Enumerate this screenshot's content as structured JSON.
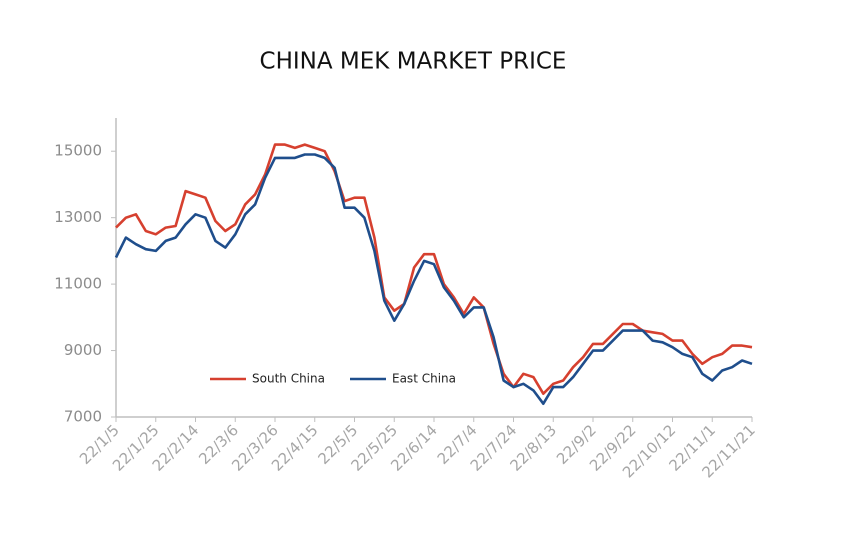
{
  "chart_data": {
    "type": "line",
    "title": "CHINA MEK MARKET PRICE",
    "x": [
      "22/1/5",
      "22/1/10",
      "22/1/15",
      "22/1/20",
      "22/1/25",
      "22/1/30",
      "22/2/4",
      "22/2/9",
      "22/2/14",
      "22/2/19",
      "22/2/24",
      "22/3/1",
      "22/3/6",
      "22/3/11",
      "22/3/16",
      "22/3/21",
      "22/3/26",
      "22/3/31",
      "22/4/5",
      "22/4/10",
      "22/4/15",
      "22/4/20",
      "22/4/25",
      "22/4/30",
      "22/5/5",
      "22/5/10",
      "22/5/15",
      "22/5/20",
      "22/5/25",
      "22/5/30",
      "22/6/4",
      "22/6/9",
      "22/6/14",
      "22/6/19",
      "22/6/24",
      "22/6/29",
      "22/7/4",
      "22/7/9",
      "22/7/14",
      "22/7/19",
      "22/7/24",
      "22/7/29",
      "22/8/3",
      "22/8/8",
      "22/8/13",
      "22/8/18",
      "22/8/23",
      "22/8/28",
      "22/9/2",
      "22/9/7",
      "22/9/12",
      "22/9/17",
      "22/9/22",
      "22/9/27",
      "22/10/2",
      "22/10/7",
      "22/10/12",
      "22/10/17",
      "22/10/22",
      "22/10/27",
      "22/11/1",
      "22/11/6",
      "22/11/11",
      "22/11/16",
      "22/11/21"
    ],
    "xticks": [
      "22/1/5",
      "22/1/25",
      "22/2/14",
      "22/3/6",
      "22/3/26",
      "22/4/15",
      "22/5/5",
      "22/5/25",
      "22/6/14",
      "22/7/4",
      "22/7/24",
      "22/8/13",
      "22/9/2",
      "22/9/22",
      "22/10/12",
      "22/11/1",
      "22/11/21"
    ],
    "series": [
      {
        "name": "South China",
        "color": "#d6402f",
        "values": [
          12700,
          13000,
          13100,
          12600,
          12500,
          12700,
          12750,
          13800,
          13700,
          13600,
          12900,
          12600,
          12800,
          13400,
          13700,
          14300,
          15200,
          15200,
          15100,
          15200,
          15100,
          15000,
          14400,
          13500,
          13600,
          13600,
          12400,
          10600,
          10200,
          10400,
          11500,
          11900,
          11900,
          11000,
          10600,
          10100,
          10600,
          10300,
          9200,
          8300,
          7900,
          8300,
          8200,
          7700,
          8000,
          8100,
          8500,
          8800,
          9200,
          9200,
          9500,
          9800,
          9800,
          9600,
          9550,
          9500,
          9300,
          9300,
          8900,
          8600,
          8800,
          8900,
          9150,
          9150,
          9100
        ]
      },
      {
        "name": "East China",
        "color": "#1f4e8c",
        "values": [
          11800,
          12400,
          12200,
          12050,
          12000,
          12300,
          12400,
          12800,
          13100,
          13000,
          12300,
          12100,
          12500,
          13100,
          13400,
          14200,
          14800,
          14800,
          14800,
          14900,
          14900,
          14800,
          14500,
          13300,
          13300,
          13000,
          12000,
          10500,
          9900,
          10400,
          11100,
          11700,
          11600,
          10900,
          10500,
          10000,
          10300,
          10300,
          9400,
          8100,
          7900,
          8000,
          7800,
          7400,
          7900,
          7900,
          8200,
          8600,
          9000,
          9000,
          9300,
          9600,
          9600,
          9600,
          9300,
          9250,
          9100,
          8900,
          8800,
          8300,
          8100,
          8400,
          8500,
          8700,
          8600
        ]
      }
    ],
    "ylim": [
      7000,
      16000
    ],
    "yticks": [
      7000,
      9000,
      11000,
      13000,
      15000
    ],
    "grid": false
  }
}
